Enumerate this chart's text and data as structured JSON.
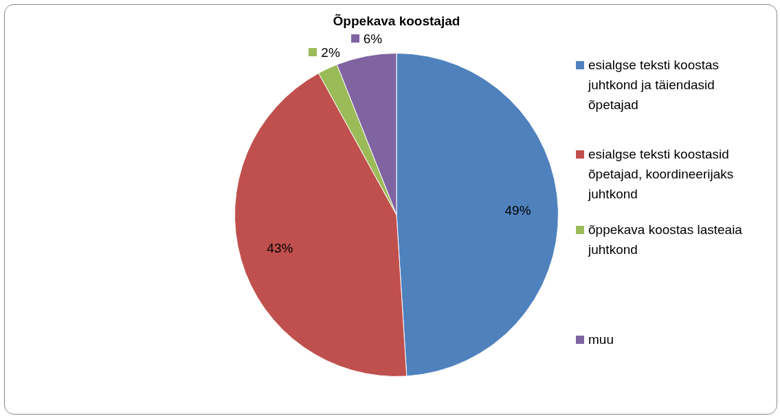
{
  "chart_data": {
    "type": "pie",
    "title": "Õppekava koostajad",
    "categories": [
      "esialgse teksti koostas juhtkond ja täiendasid õpetajad",
      "esialgse teksti koostasid õpetajad, koordineerijaks juhtkond",
      "õppekava koostas lasteaia juhtkond",
      "muu"
    ],
    "values": [
      49,
      43,
      2,
      6
    ],
    "colors": [
      "#4f81bd",
      "#c0504d",
      "#9bbb59",
      "#8064a2"
    ],
    "value_labels": [
      "49%",
      "43%",
      "2%",
      "6%"
    ],
    "legend": "right"
  }
}
